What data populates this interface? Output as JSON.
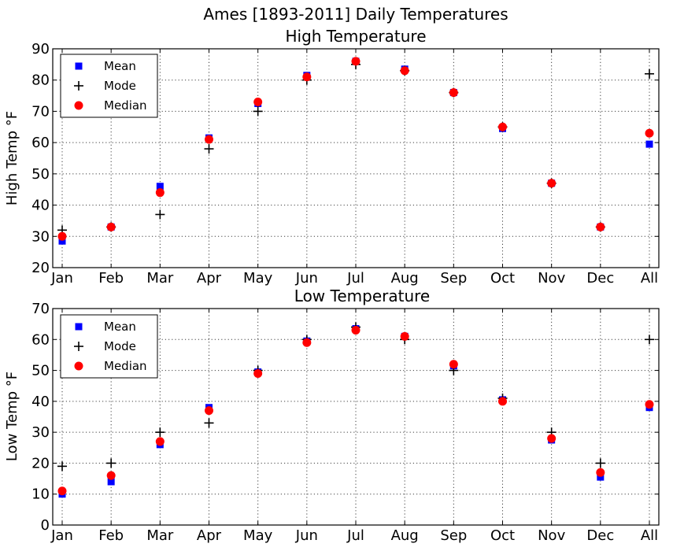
{
  "figure_title": "Ames [1893-2011] Daily Temperatures",
  "colors": {
    "mean": "#0000ff",
    "mode": "#000000",
    "median": "#ff0000"
  },
  "chart_data": [
    {
      "type": "scatter",
      "title": "High Temperature",
      "xlabel": "",
      "ylabel": "High Temp °F",
      "categories": [
        "Jan",
        "Feb",
        "Mar",
        "Apr",
        "May",
        "Jun",
        "Jul",
        "Aug",
        "Sep",
        "Oct",
        "Nov",
        "Dec",
        "All"
      ],
      "ylim": [
        20,
        90
      ],
      "yticks": [
        20,
        30,
        40,
        50,
        60,
        70,
        80,
        90
      ],
      "grid": true,
      "legend_position": "top-left",
      "series": [
        {
          "name": "Mean",
          "marker": "square",
          "color": "#0000ff",
          "values": [
            28.5,
            33,
            46,
            61.5,
            72.5,
            81.5,
            86,
            83.5,
            76,
            64.5,
            47,
            33,
            59.5
          ]
        },
        {
          "name": "Mode",
          "marker": "plus",
          "color": "#000000",
          "values": [
            32,
            33,
            37,
            58,
            70,
            80,
            85,
            83,
            76,
            65,
            47,
            33,
            82
          ]
        },
        {
          "name": "Median",
          "marker": "circle",
          "color": "#ff0000",
          "values": [
            30,
            33,
            44,
            61,
            73,
            81,
            86,
            83,
            76,
            65,
            47,
            33,
            63
          ]
        }
      ]
    },
    {
      "type": "scatter",
      "title": "Low Temperature",
      "xlabel": "",
      "ylabel": "Low Temp °F",
      "categories": [
        "Jan",
        "Feb",
        "Mar",
        "Apr",
        "May",
        "Jun",
        "Jul",
        "Aug",
        "Sep",
        "Oct",
        "Nov",
        "Dec",
        "All"
      ],
      "ylim": [
        0,
        70
      ],
      "yticks": [
        0,
        10,
        20,
        30,
        40,
        50,
        60,
        70
      ],
      "grid": true,
      "legend_position": "top-left",
      "series": [
        {
          "name": "Mean",
          "marker": "square",
          "color": "#0000ff",
          "values": [
            10,
            14,
            26,
            38,
            49.5,
            59.5,
            63.5,
            61,
            51.5,
            40.5,
            27.5,
            15.5,
            38
          ]
        },
        {
          "name": "Mode",
          "marker": "plus",
          "color": "#000000",
          "values": [
            19,
            20,
            30,
            33,
            50,
            60,
            64,
            60,
            50,
            41,
            30,
            20,
            60
          ]
        },
        {
          "name": "Median",
          "marker": "circle",
          "color": "#ff0000",
          "values": [
            11,
            16,
            27,
            37,
            49,
            59,
            63,
            61,
            52,
            40,
            28,
            17,
            39
          ]
        }
      ]
    }
  ]
}
